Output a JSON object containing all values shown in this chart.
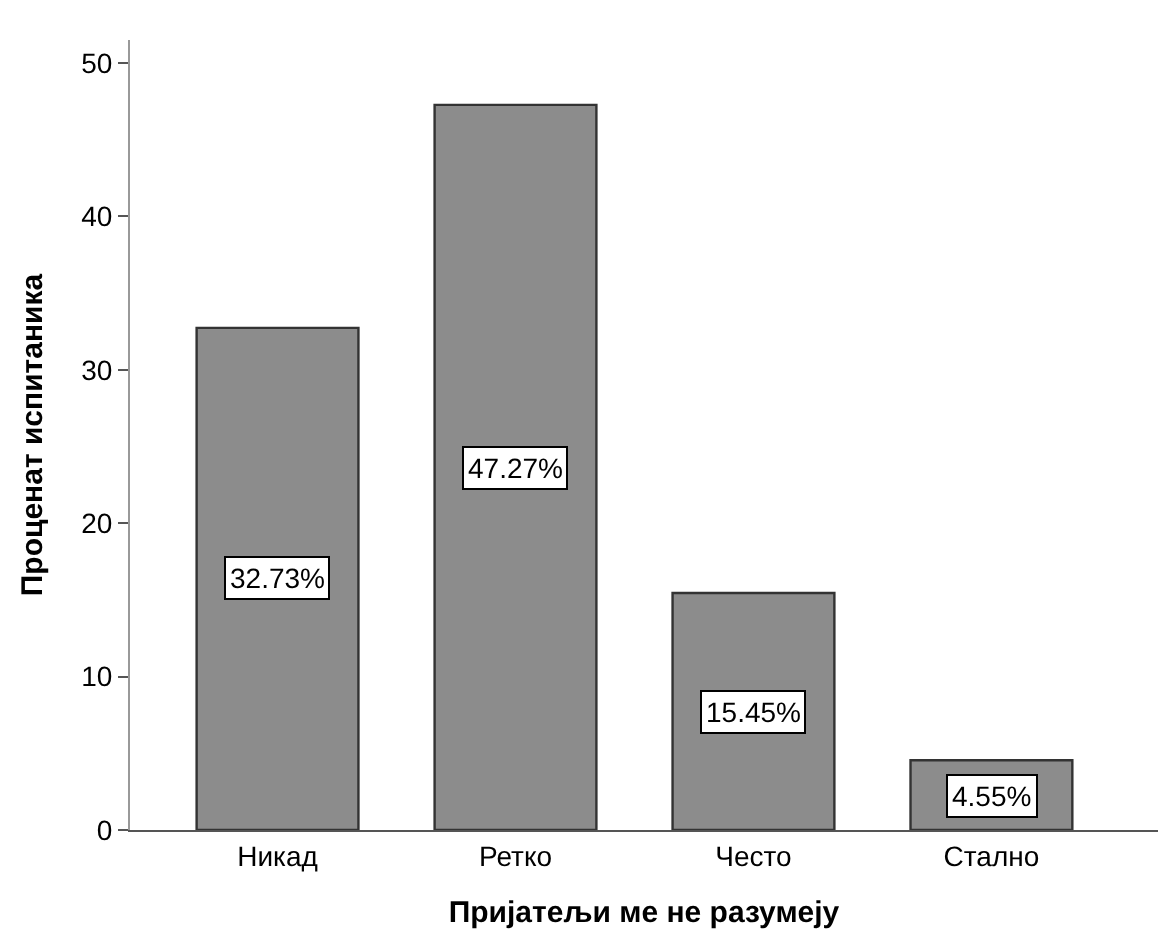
{
  "chart_data": {
    "type": "bar",
    "xlabel": "Пријатељи ме не разумеју",
    "ylabel": "Проценат испитаника",
    "categories": [
      "Никад",
      "Ретко",
      "Често",
      "Стално"
    ],
    "values": [
      32.73,
      47.27,
      15.45,
      4.55
    ],
    "value_labels": [
      "32.73%",
      "47.27%",
      "15.45%",
      "4.55%"
    ],
    "color": "#8c8c8c",
    "ylim": [
      0,
      51.5
    ],
    "yticks": [
      0,
      10,
      20,
      30,
      40,
      50
    ]
  }
}
